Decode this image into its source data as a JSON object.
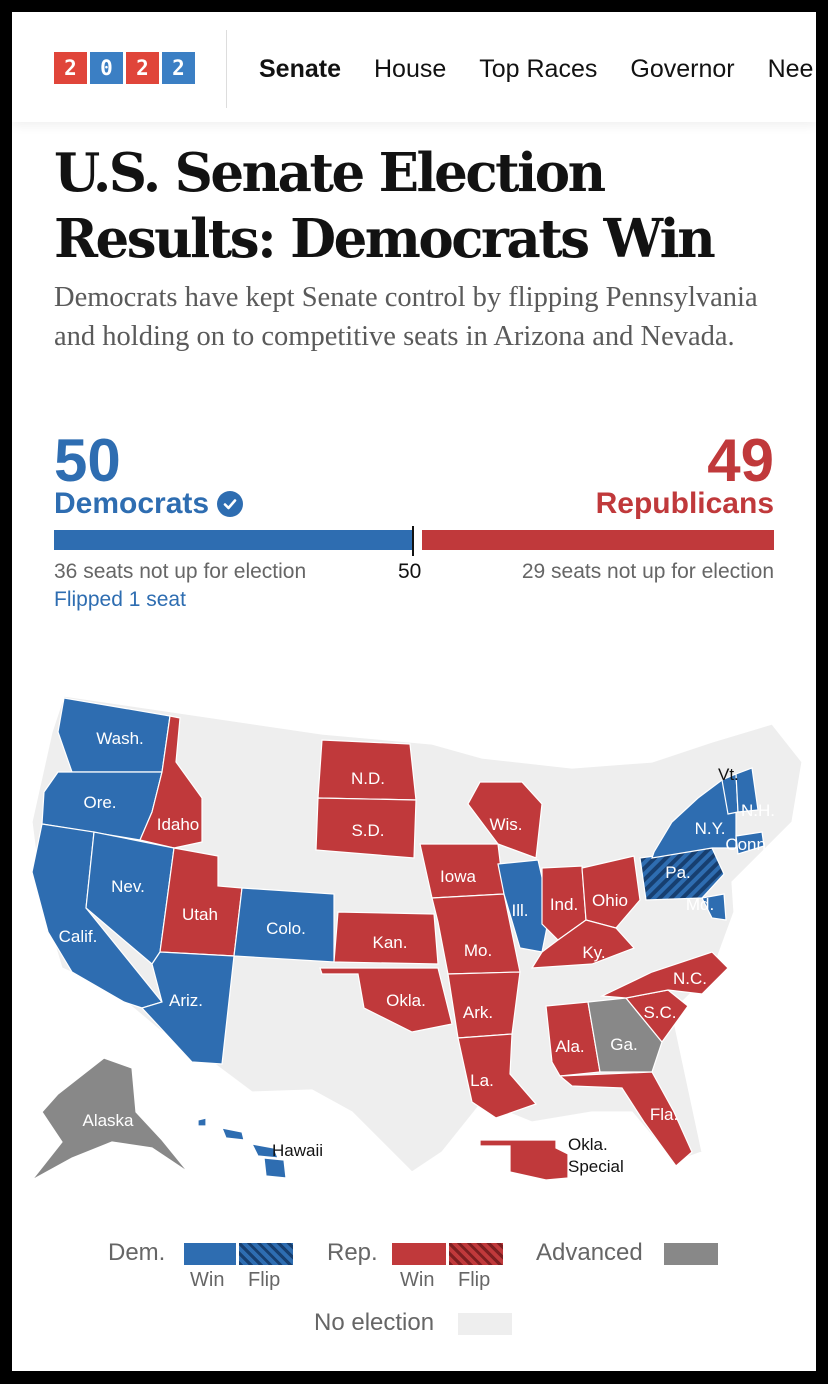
{
  "header": {
    "logo_digits": [
      {
        "char": "2",
        "color": "#e0453a"
      },
      {
        "char": "0",
        "color": "#3b7fc4"
      },
      {
        "char": "2",
        "color": "#e0453a"
      },
      {
        "char": "2",
        "color": "#3b7fc4"
      }
    ],
    "nav": [
      {
        "label": "Senate",
        "active": true
      },
      {
        "label": "House",
        "active": false
      },
      {
        "label": "Top Races",
        "active": false
      },
      {
        "label": "Governor",
        "active": false
      },
      {
        "label": "Nee",
        "active": false
      }
    ]
  },
  "article": {
    "headline": "U.S. Senate Election Results: Democrats Win",
    "dek": "Democrats have kept Senate control by flipping Pennsylvania and holding on to competitive seats in Arizona and Nevada."
  },
  "seats": {
    "dem_count": "50",
    "dem_label": "Democrats",
    "rep_count": "49",
    "rep_label": "Republicans",
    "majority_mark": "50",
    "dem_not_up": "36 seats not up for election",
    "rep_not_up": "29 seats not up for election",
    "dem_flipped": "Flipped 1 seat",
    "colors": {
      "dem": "#2e6db1",
      "rep": "#c0393b",
      "advanced": "#888888",
      "no_election": "#eeeeee"
    }
  },
  "map": {
    "state_labels": {
      "wash": "Wash.",
      "ore": "Ore.",
      "idaho": "Idaho",
      "calif": "Calif.",
      "nev": "Nev.",
      "utah": "Utah",
      "ariz": "Ariz.",
      "colo": "Colo.",
      "nd": "N.D.",
      "sd": "S.D.",
      "kan": "Kan.",
      "okla": "Okla.",
      "iowa": "Iowa",
      "mo": "Mo.",
      "ark": "Ark.",
      "la": "La.",
      "wis": "Wis.",
      "ill": "Ill.",
      "ind": "Ind.",
      "ohio": "Ohio",
      "ky": "Ky.",
      "ala": "Ala.",
      "ga": "Ga.",
      "fla": "Fla.",
      "sc": "S.C.",
      "nc": "N.C.",
      "pa": "Pa.",
      "md": "Md.",
      "ny": "N.Y.",
      "conn": "Conn.",
      "vt": "Vt.",
      "nh": "N.H.",
      "alaska": "Alaska",
      "hawaii": "Hawaii",
      "okla_special_1": "Okla.",
      "okla_special_2": "Special"
    }
  },
  "legend": {
    "dem": "Dem.",
    "rep": "Rep.",
    "win": "Win",
    "flip": "Flip",
    "advanced": "Advanced",
    "no_election": "No election"
  }
}
